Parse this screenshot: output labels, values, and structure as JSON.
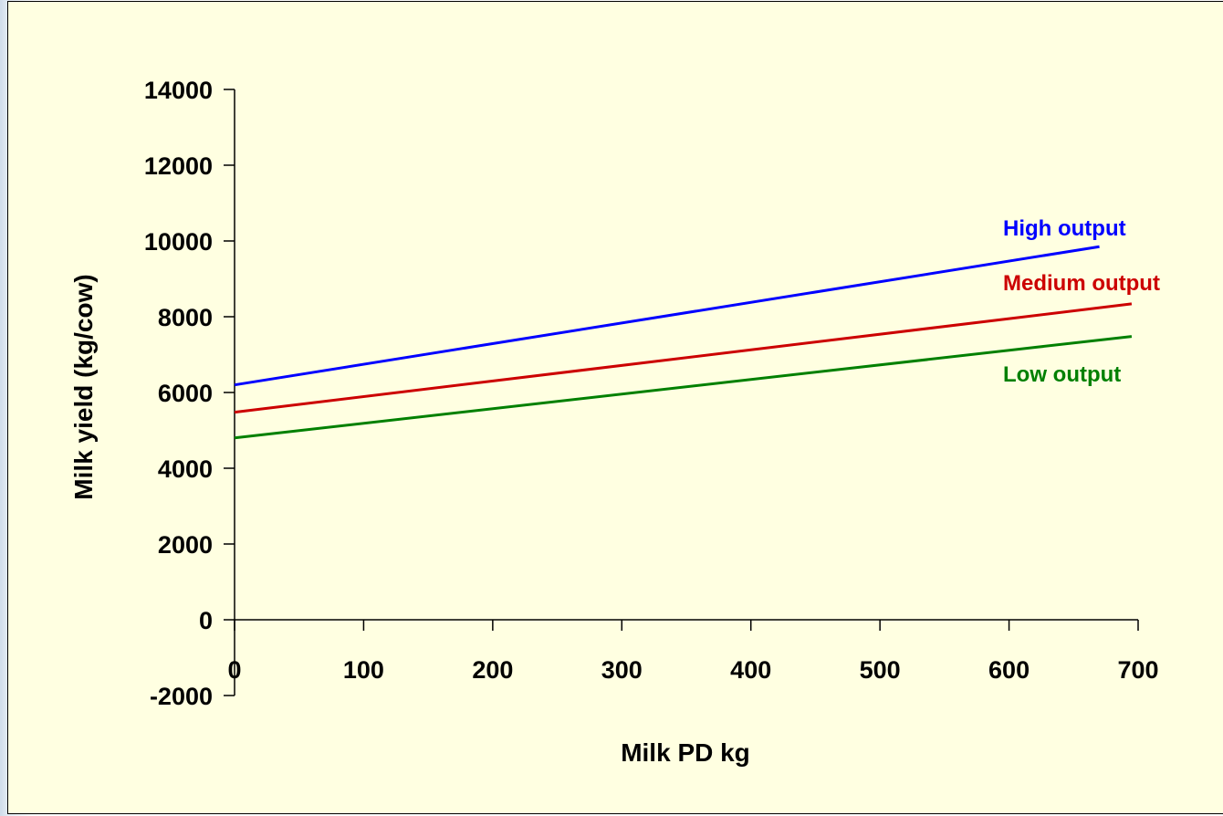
{
  "chart_data": {
    "type": "line",
    "title": "",
    "xlabel": "Milk PD kg",
    "ylabel": "Milk yield (kg/cow)",
    "xlim": [
      0,
      700
    ],
    "ylim": [
      -2000,
      14000
    ],
    "x_ticks": [
      "0",
      "100",
      "200",
      "300",
      "400",
      "500",
      "600",
      "700"
    ],
    "y_ticks": [
      "14000",
      "12000",
      "10000",
      "8000",
      "6000",
      "4000",
      "2000",
      "0",
      "-2000"
    ],
    "x_tick_values": [
      0,
      100,
      200,
      300,
      400,
      500,
      600,
      700
    ],
    "y_tick_values": [
      14000,
      12000,
      10000,
      8000,
      6000,
      4000,
      2000,
      0,
      -2000
    ],
    "grid": false,
    "series": [
      {
        "name": "High output",
        "color": "#0000ff",
        "x": [
          0,
          670
        ],
        "values": [
          6200,
          9850
        ]
      },
      {
        "name": "Medium output",
        "color": "#cc0000",
        "x": [
          0,
          695
        ],
        "values": [
          5480,
          8340
        ]
      },
      {
        "name": "Low output",
        "color": "#008000",
        "x": [
          0,
          695
        ],
        "values": [
          4800,
          7480
        ]
      }
    ]
  }
}
